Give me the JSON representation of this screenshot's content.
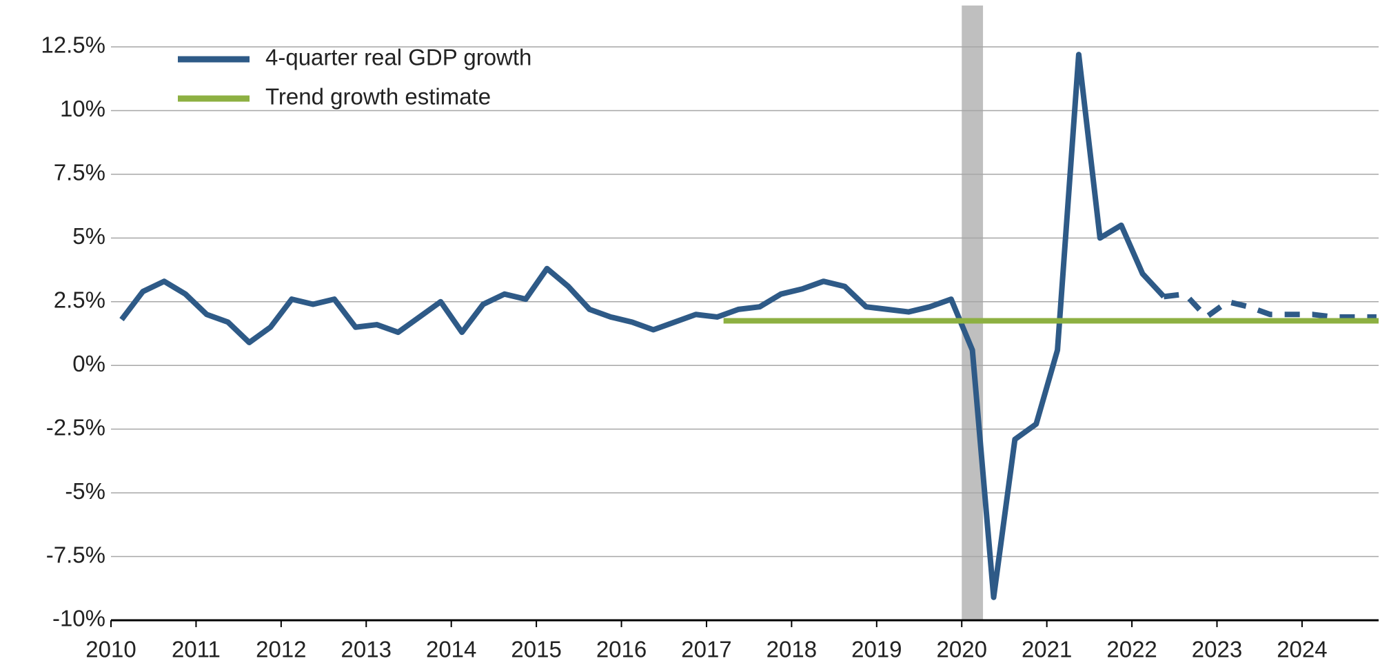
{
  "chart_data": {
    "type": "line",
    "x": [
      2010.125,
      2010.375,
      2010.625,
      2010.875,
      2011.125,
      2011.375,
      2011.625,
      2011.875,
      2012.125,
      2012.375,
      2012.625,
      2012.875,
      2013.125,
      2013.375,
      2013.625,
      2013.875,
      2014.125,
      2014.375,
      2014.625,
      2014.875,
      2015.125,
      2015.375,
      2015.625,
      2015.875,
      2016.125,
      2016.375,
      2016.625,
      2016.875,
      2017.125,
      2017.375,
      2017.625,
      2017.875,
      2018.125,
      2018.375,
      2018.625,
      2018.875,
      2019.125,
      2019.375,
      2019.625,
      2019.875,
      2020.125,
      2020.375,
      2020.625,
      2020.875,
      2021.125,
      2021.375,
      2021.625,
      2021.875,
      2022.125,
      2022.375,
      2022.625,
      2022.875,
      2023.125,
      2023.375,
      2023.625,
      2023.875,
      2024.125,
      2024.375,
      2024.625,
      2024.875
    ],
    "series": [
      {
        "name": "4-quarter real GDP growth",
        "color": "#2e5a87",
        "values": [
          1.8,
          2.9,
          3.3,
          2.8,
          2.0,
          1.7,
          0.9,
          1.5,
          2.6,
          2.4,
          2.6,
          1.5,
          1.6,
          1.3,
          1.9,
          2.5,
          1.3,
          2.4,
          2.8,
          2.6,
          3.8,
          3.1,
          2.2,
          1.9,
          1.7,
          1.4,
          1.7,
          2.0,
          1.9,
          2.2,
          2.3,
          2.8,
          3.0,
          3.3,
          3.1,
          2.3,
          2.2,
          2.1,
          2.3,
          2.6,
          0.6,
          -9.1,
          -2.9,
          -2.3,
          0.6,
          12.2,
          5.0,
          5.5,
          3.6,
          2.7,
          null,
          null,
          null,
          null,
          null,
          null,
          null,
          null,
          null,
          null
        ]
      },
      {
        "color": "#2e5a87",
        "dashed": true,
        "values": [
          null,
          null,
          null,
          null,
          null,
          null,
          null,
          null,
          null,
          null,
          null,
          null,
          null,
          null,
          null,
          null,
          null,
          null,
          null,
          null,
          null,
          null,
          null,
          null,
          null,
          null,
          null,
          null,
          null,
          null,
          null,
          null,
          null,
          null,
          null,
          null,
          null,
          null,
          null,
          null,
          null,
          null,
          null,
          null,
          null,
          null,
          null,
          null,
          null,
          2.7,
          2.8,
          1.9,
          2.5,
          2.3,
          2.0,
          2.0,
          2.0,
          1.9,
          1.9,
          1.9
        ]
      },
      {
        "name": "Trend growth estimate",
        "color": "#8db042",
        "x": [
          2017.2,
          2024.9
        ],
        "values": [
          1.75,
          1.75
        ]
      }
    ],
    "shaded_span": [
      2020.0,
      2020.25
    ],
    "shade_color": "#bfbfbf",
    "xlim": [
      2010,
      2024.9
    ],
    "xticks": [
      2010,
      2011,
      2012,
      2013,
      2014,
      2015,
      2016,
      2017,
      2018,
      2019,
      2020,
      2021,
      2022,
      2023,
      2024
    ],
    "ylim": [
      -10,
      12.5
    ],
    "yticks": [
      {
        "value": -10,
        "label": "-10%"
      },
      {
        "value": -7.5,
        "label": "-7.5%"
      },
      {
        "value": -5,
        "label": "-5%"
      },
      {
        "value": -2.5,
        "label": "-2.5%"
      },
      {
        "value": 0,
        "label": "0%"
      },
      {
        "value": 2.5,
        "label": "2.5%"
      },
      {
        "value": 5,
        "label": "5%"
      },
      {
        "value": 7.5,
        "label": "7.5%"
      },
      {
        "value": 10,
        "label": "10%"
      },
      {
        "value": 12.5,
        "label": "12.5%"
      }
    ],
    "grid": true,
    "legend": "top-left"
  }
}
